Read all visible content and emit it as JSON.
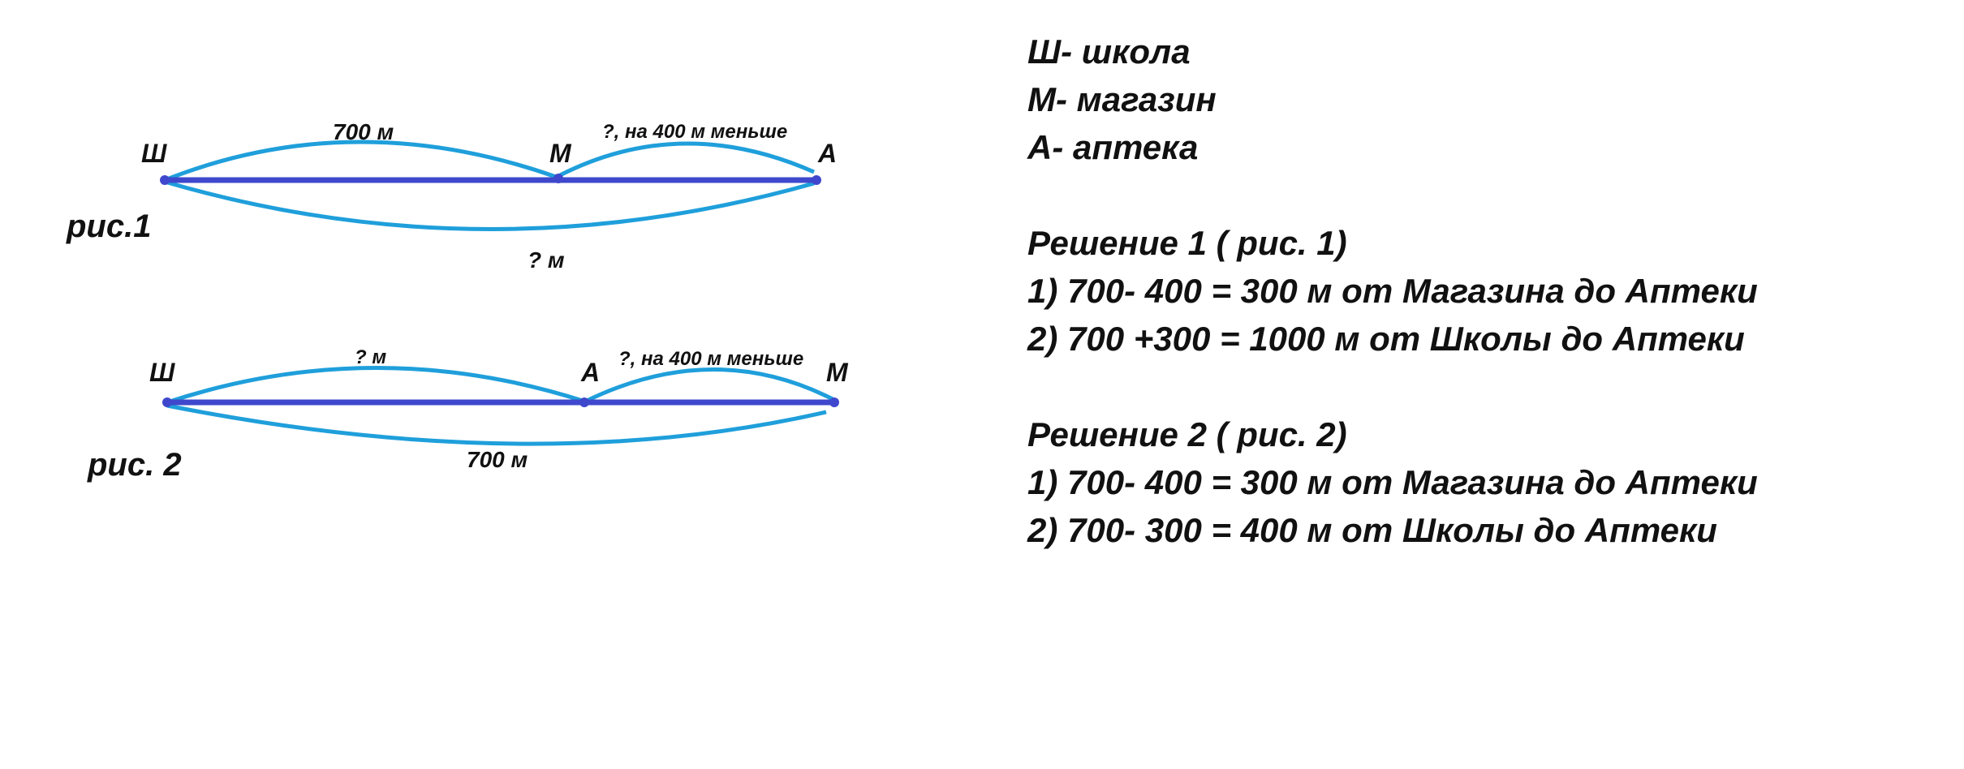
{
  "colors": {
    "line": "#3f48cc",
    "arc": "#1f9fdb",
    "text": "#111111"
  },
  "figure1": {
    "label": "рис.1",
    "points": [
      "Ш",
      "М",
      "А"
    ],
    "top_left_label": "700 м",
    "top_right_label": "?, на 400 м меньше",
    "bottom_label": "? м"
  },
  "figure2": {
    "label": "рис. 2",
    "points": [
      "Ш",
      "А",
      "М"
    ],
    "top_left_label": "? м",
    "top_right_label": "?, на 400 м меньше",
    "bottom_label": "700 м"
  },
  "legend": [
    "Ш- школа",
    "М- магазин",
    "А- аптека"
  ],
  "solution1": {
    "title": "Решение 1 ( рис. 1)",
    "steps": [
      "1) 700- 400 = 300 м от Магазина до Аптеки",
      "2) 700 +300 = 1000 м от Школы до Аптеки"
    ]
  },
  "solution2": {
    "title": "Решение 2 ( рис. 2)",
    "steps": [
      "1) 700- 400 = 300 м от Магазина до Аптеки",
      "2) 700- 300 = 400 м от Школы до Аптеки"
    ]
  }
}
